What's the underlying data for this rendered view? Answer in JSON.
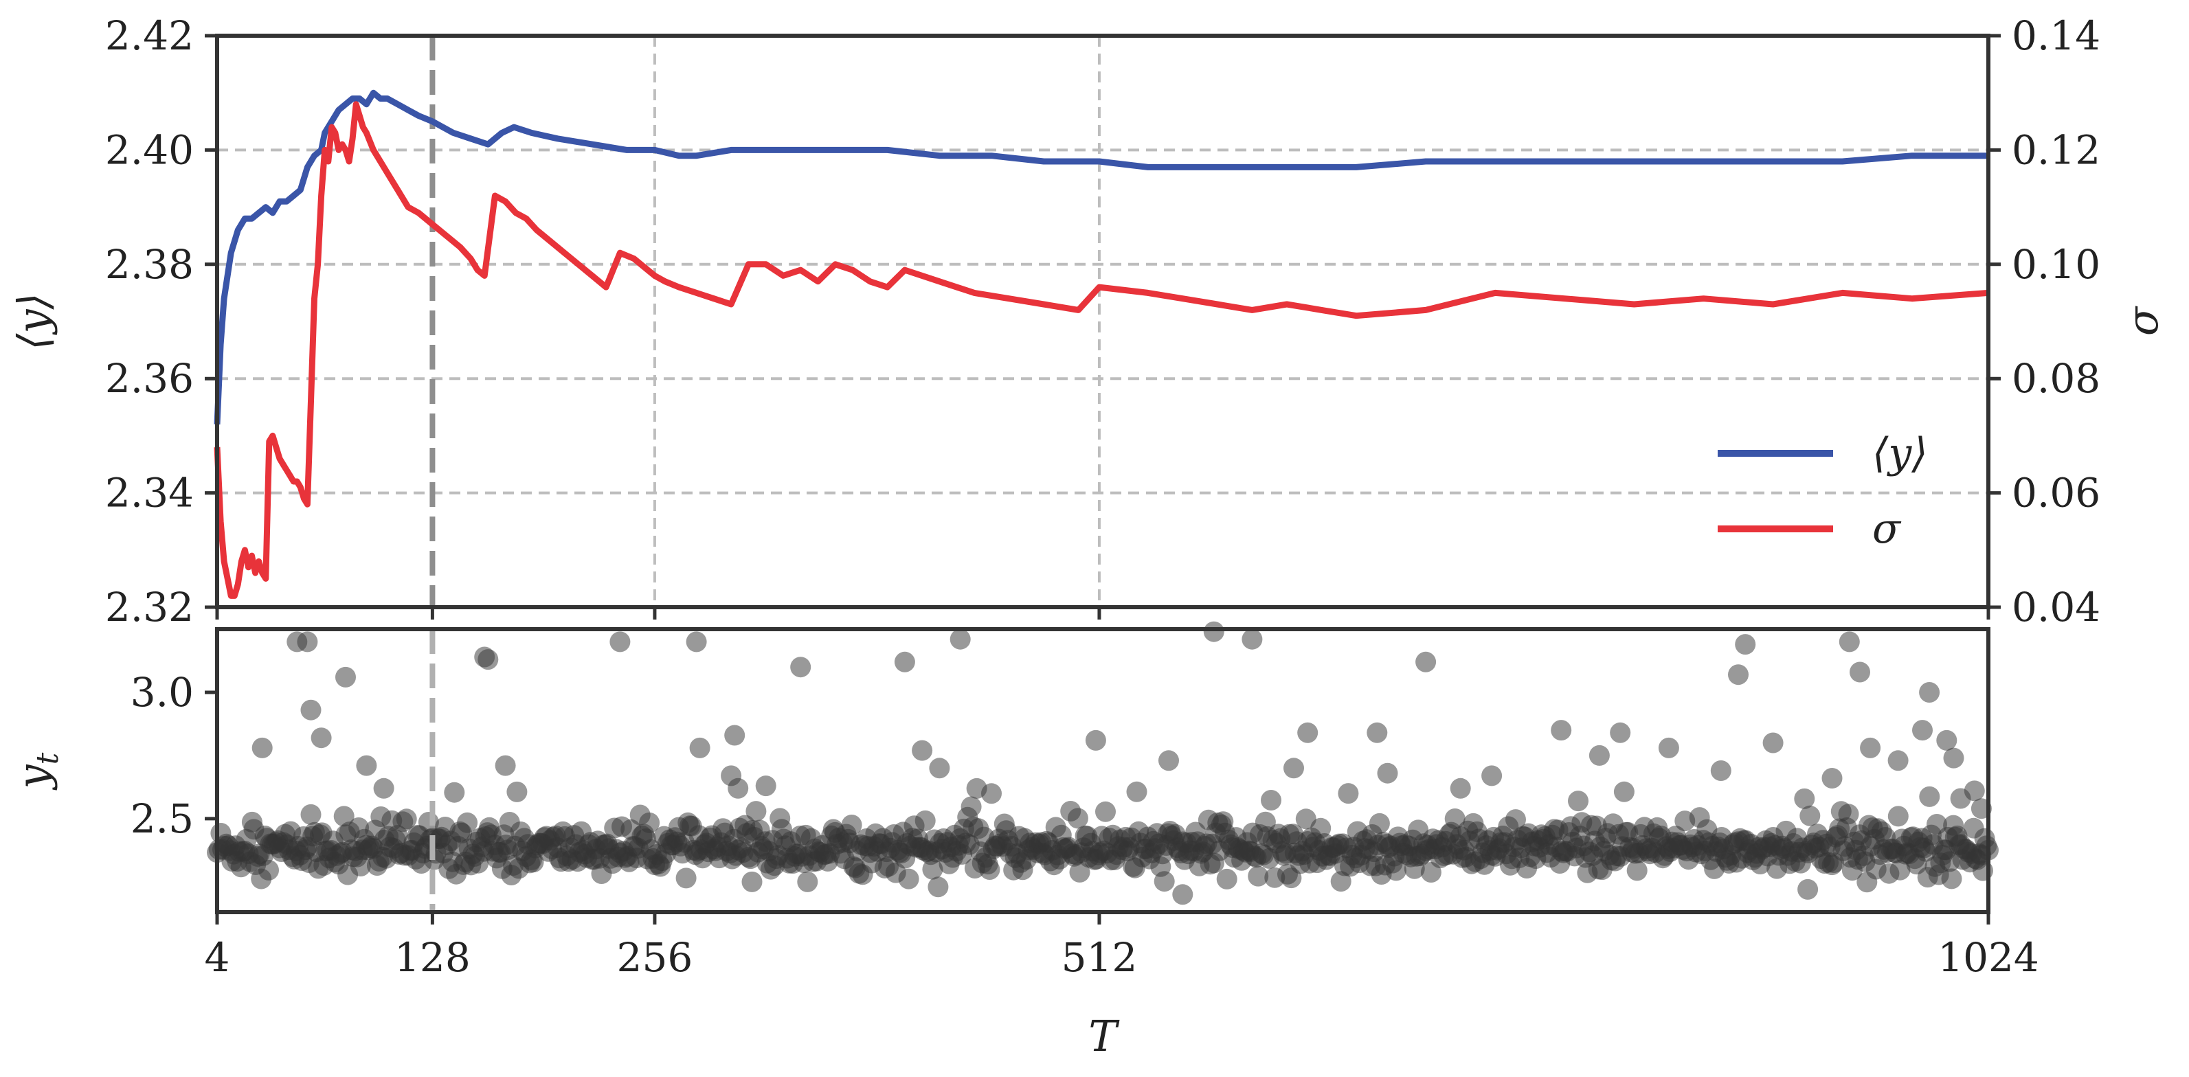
{
  "chart_data": [
    {
      "id": "top",
      "type": "line",
      "x_ticks": [
        4,
        128,
        256,
        512,
        1024
      ],
      "x_tick_labels": [
        "4",
        "128",
        "256",
        "512",
        "1024"
      ],
      "xlabel": "T",
      "xlim": [
        4,
        1024
      ],
      "ylabel_left": "⟨y⟩",
      "ylim_left": [
        2.32,
        2.42
      ],
      "yticks_left": [
        "2.32",
        "2.34",
        "2.36",
        "2.38",
        "2.40",
        "2.42"
      ],
      "ylabel_right": "σ",
      "ylim_right": [
        0.04,
        0.14
      ],
      "yticks_right": [
        "0.04",
        "0.06",
        "0.08",
        "0.10",
        "0.12",
        "0.14"
      ],
      "grid": true,
      "legend_placement": "lower-right",
      "vertical_marker_x": 128,
      "series": [
        {
          "name": "⟨y⟩",
          "axis": "left",
          "color": "#3a55a8",
          "x": [
            4,
            6,
            8,
            12,
            16,
            20,
            24,
            28,
            32,
            36,
            40,
            44,
            48,
            52,
            56,
            60,
            64,
            66,
            70,
            74,
            78,
            82,
            86,
            90,
            94,
            98,
            102,
            108,
            114,
            120,
            128,
            140,
            150,
            160,
            168,
            175,
            185,
            200,
            220,
            240,
            256,
            270,
            280,
            300,
            330,
            360,
            390,
            420,
            450,
            480,
            512,
            540,
            560,
            580,
            620,
            660,
            700,
            740,
            780,
            820,
            860,
            900,
            940,
            980,
            1024
          ],
          "y": [
            2.352,
            2.366,
            2.374,
            2.382,
            2.386,
            2.388,
            2.388,
            2.389,
            2.39,
            2.389,
            2.391,
            2.391,
            2.392,
            2.393,
            2.397,
            2.399,
            2.4,
            2.403,
            2.405,
            2.407,
            2.408,
            2.409,
            2.409,
            2.408,
            2.41,
            2.409,
            2.409,
            2.408,
            2.407,
            2.406,
            2.405,
            2.403,
            2.402,
            2.401,
            2.403,
            2.404,
            2.403,
            2.402,
            2.401,
            2.4,
            2.4,
            2.399,
            2.399,
            2.4,
            2.4,
            2.4,
            2.4,
            2.399,
            2.399,
            2.398,
            2.398,
            2.397,
            2.397,
            2.397,
            2.397,
            2.397,
            2.398,
            2.398,
            2.398,
            2.398,
            2.398,
            2.398,
            2.398,
            2.399,
            2.399
          ]
        },
        {
          "name": "σ",
          "axis": "right",
          "color": "#e8333a",
          "x": [
            4,
            6,
            8,
            10,
            12,
            14,
            16,
            18,
            20,
            22,
            24,
            26,
            28,
            30,
            32,
            34,
            36,
            38,
            40,
            42,
            44,
            46,
            48,
            50,
            52,
            54,
            56,
            58,
            60,
            62,
            64,
            66,
            68,
            70,
            72,
            74,
            76,
            78,
            80,
            82,
            84,
            86,
            88,
            90,
            94,
            98,
            102,
            108,
            114,
            120,
            128,
            136,
            144,
            150,
            154,
            158,
            164,
            170,
            176,
            182,
            188,
            196,
            204,
            212,
            220,
            228,
            236,
            244,
            252,
            256,
            262,
            270,
            280,
            290,
            300,
            310,
            320,
            330,
            340,
            350,
            360,
            370,
            380,
            390,
            400,
            420,
            440,
            460,
            480,
            500,
            512,
            540,
            560,
            580,
            600,
            620,
            640,
            660,
            700,
            740,
            780,
            820,
            860,
            900,
            940,
            980,
            1024
          ],
          "y": [
            0.068,
            0.055,
            0.048,
            0.045,
            0.042,
            0.042,
            0.044,
            0.048,
            0.05,
            0.047,
            0.049,
            0.046,
            0.048,
            0.046,
            0.045,
            0.069,
            0.07,
            0.068,
            0.066,
            0.065,
            0.064,
            0.063,
            0.062,
            0.062,
            0.061,
            0.059,
            0.058,
            0.076,
            0.094,
            0.1,
            0.112,
            0.12,
            0.118,
            0.124,
            0.123,
            0.12,
            0.121,
            0.12,
            0.118,
            0.122,
            0.128,
            0.126,
            0.124,
            0.123,
            0.12,
            0.118,
            0.116,
            0.113,
            0.11,
            0.109,
            0.107,
            0.105,
            0.103,
            0.101,
            0.099,
            0.098,
            0.112,
            0.111,
            0.109,
            0.108,
            0.106,
            0.104,
            0.102,
            0.1,
            0.098,
            0.096,
            0.102,
            0.101,
            0.099,
            0.098,
            0.097,
            0.096,
            0.095,
            0.094,
            0.093,
            0.1,
            0.1,
            0.098,
            0.099,
            0.097,
            0.1,
            0.099,
            0.097,
            0.096,
            0.099,
            0.097,
            0.095,
            0.094,
            0.093,
            0.092,
            0.096,
            0.095,
            0.094,
            0.093,
            0.092,
            0.093,
            0.092,
            0.091,
            0.092,
            0.095,
            0.094,
            0.093,
            0.094,
            0.093,
            0.095,
            0.094,
            0.095
          ]
        }
      ]
    },
    {
      "id": "bottom",
      "type": "scatter",
      "xlabel": "T",
      "ylabel": "y_t",
      "xlim": [
        4,
        1024
      ],
      "ylim": [
        2.13,
        3.25
      ],
      "yticks": [
        "2.5",
        "3.0"
      ],
      "ytick_values": [
        2.5,
        3.0
      ],
      "color": "#333333",
      "opacity": 0.5,
      "n_points": 1021,
      "baseline_mean": 2.38,
      "baseline_spread": 0.045,
      "outliers": [
        {
          "x": 30,
          "y": 2.78
        },
        {
          "x": 50,
          "y": 3.2
        },
        {
          "x": 56,
          "y": 3.2
        },
        {
          "x": 58,
          "y": 2.93
        },
        {
          "x": 64,
          "y": 2.82
        },
        {
          "x": 78,
          "y": 3.06
        },
        {
          "x": 90,
          "y": 2.71
        },
        {
          "x": 100,
          "y": 2.62
        },
        {
          "x": 158,
          "y": 3.14
        },
        {
          "x": 160,
          "y": 3.13
        },
        {
          "x": 170,
          "y": 2.71
        },
        {
          "x": 236,
          "y": 3.2
        },
        {
          "x": 282,
          "y": 2.78
        },
        {
          "x": 280,
          "y": 3.2
        },
        {
          "x": 302,
          "y": 2.83
        },
        {
          "x": 300,
          "y": 2.67
        },
        {
          "x": 304,
          "y": 2.62
        },
        {
          "x": 340,
          "y": 3.1
        },
        {
          "x": 320,
          "y": 2.63
        },
        {
          "x": 400,
          "y": 3.12
        },
        {
          "x": 410,
          "y": 2.77
        },
        {
          "x": 420,
          "y": 2.7
        },
        {
          "x": 432,
          "y": 3.21
        },
        {
          "x": 510,
          "y": 2.81
        },
        {
          "x": 552,
          "y": 2.73
        },
        {
          "x": 578,
          "y": 3.24
        },
        {
          "x": 600,
          "y": 3.21
        },
        {
          "x": 624,
          "y": 2.7
        },
        {
          "x": 632,
          "y": 2.84
        },
        {
          "x": 672,
          "y": 2.84
        },
        {
          "x": 678,
          "y": 2.68
        },
        {
          "x": 700,
          "y": 3.12
        },
        {
          "x": 720,
          "y": 2.62
        },
        {
          "x": 738,
          "y": 2.67
        },
        {
          "x": 778,
          "y": 2.85
        },
        {
          "x": 800,
          "y": 2.75
        },
        {
          "x": 812,
          "y": 2.84
        },
        {
          "x": 840,
          "y": 2.78
        },
        {
          "x": 870,
          "y": 2.69
        },
        {
          "x": 880,
          "y": 3.07
        },
        {
          "x": 884,
          "y": 3.19
        },
        {
          "x": 900,
          "y": 2.8
        },
        {
          "x": 934,
          "y": 2.66
        },
        {
          "x": 944,
          "y": 3.2
        },
        {
          "x": 950,
          "y": 3.08
        },
        {
          "x": 956,
          "y": 2.78
        },
        {
          "x": 972,
          "y": 2.73
        },
        {
          "x": 986,
          "y": 2.85
        },
        {
          "x": 990,
          "y": 3.0
        },
        {
          "x": 1000,
          "y": 2.81
        },
        {
          "x": 1004,
          "y": 2.74
        },
        {
          "x": 1008,
          "y": 2.58
        },
        {
          "x": 1016,
          "y": 2.61
        },
        {
          "x": 1020,
          "y": 2.54
        },
        {
          "x": 920,
          "y": 2.22
        },
        {
          "x": 560,
          "y": 2.2
        },
        {
          "x": 312,
          "y": 2.25
        }
      ]
    }
  ],
  "legend": {
    "items": [
      {
        "label": "⟨y⟩",
        "color": "#3a55a8"
      },
      {
        "label": "σ",
        "color": "#e8333a"
      }
    ]
  }
}
